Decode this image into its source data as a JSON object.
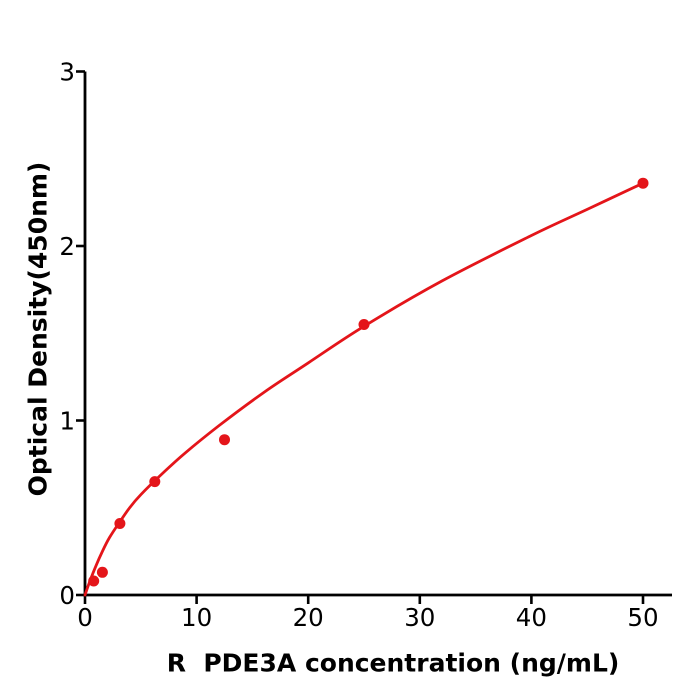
{
  "figure": {
    "kind": "elisa-standard-curve",
    "background_color": "#ffffff",
    "title": ""
  },
  "chart_data": {
    "type": "scatter",
    "title": "",
    "xlabel": "R  PDE3A concentration (ng/mL)",
    "ylabel": "Optical Density(450nm)",
    "x_ticks": [
      0,
      10,
      20,
      30,
      40,
      50
    ],
    "x_tick_labels": [
      "0",
      "10",
      "20",
      "30",
      "40",
      "50"
    ],
    "y_ticks": [
      0,
      1,
      2,
      3
    ],
    "y_tick_labels": [
      "0",
      "1",
      "2",
      "3"
    ],
    "xlim": [
      0,
      52.6
    ],
    "ylim": [
      0,
      3
    ],
    "grid": false,
    "legend": false,
    "axis_color": "#000000",
    "accent_color": "#e4151a",
    "series": [
      {
        "name": "standard-points",
        "type": "scatter",
        "marker": "circle",
        "color": "#e4151a",
        "points": [
          {
            "x": 0.78,
            "y": 0.08
          },
          {
            "x": 1.56,
            "y": 0.13
          },
          {
            "x": 3.125,
            "y": 0.41
          },
          {
            "x": 6.25,
            "y": 0.65
          },
          {
            "x": 12.5,
            "y": 0.89
          },
          {
            "x": 25,
            "y": 1.55
          },
          {
            "x": 50,
            "y": 2.36
          }
        ]
      },
      {
        "name": "fitted-curve",
        "type": "line",
        "color": "#e4151a",
        "samples": [
          [
            0,
            0
          ],
          [
            0.5,
            0.09
          ],
          [
            1.0,
            0.17
          ],
          [
            1.56,
            0.25
          ],
          [
            2.2,
            0.33
          ],
          [
            3.125,
            0.42
          ],
          [
            4,
            0.5
          ],
          [
            5,
            0.575
          ],
          [
            7,
            0.7
          ],
          [
            9,
            0.815
          ],
          [
            12,
            0.97
          ],
          [
            16,
            1.16
          ],
          [
            20,
            1.33
          ],
          [
            25,
            1.54
          ],
          [
            32,
            1.8
          ],
          [
            40,
            2.06
          ],
          [
            45,
            2.21
          ],
          [
            50,
            2.36
          ]
        ]
      }
    ]
  }
}
